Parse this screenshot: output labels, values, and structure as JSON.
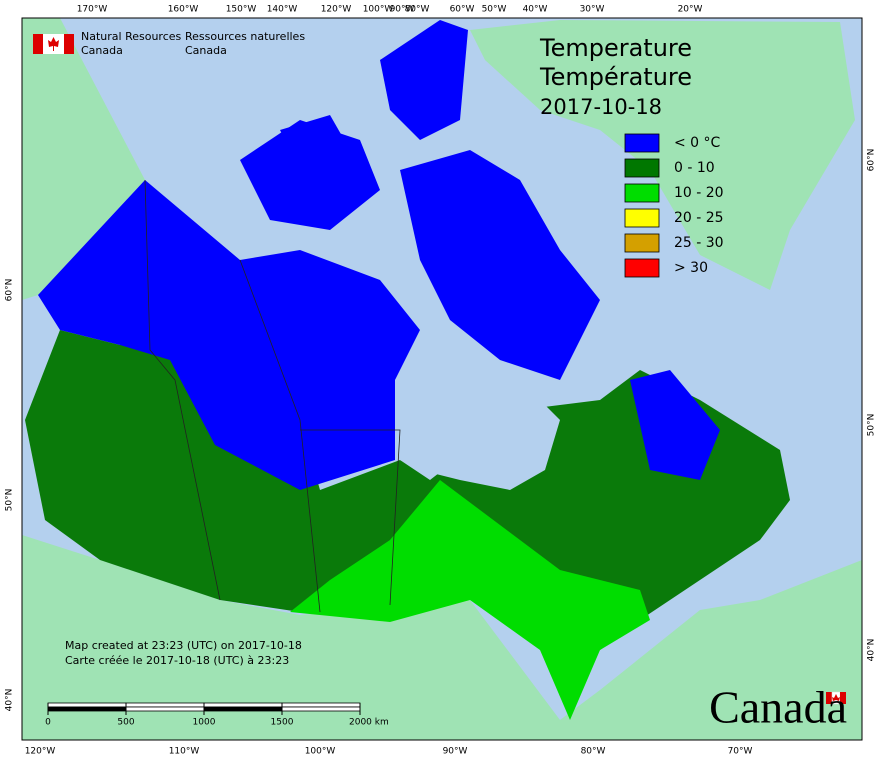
{
  "header": {
    "dept_en": [
      "Natural Resources",
      "Canada"
    ],
    "dept_fr": [
      "Ressources naturelles",
      "Canada"
    ]
  },
  "title": {
    "en": "Temperature",
    "fr": "Température",
    "date": "2017-10-18"
  },
  "legend": [
    {
      "label": "< 0 °C",
      "color": "#0000ff"
    },
    {
      "label": "0 - 10",
      "color": "#007700"
    },
    {
      "label": "10 - 20",
      "color": "#00dd00"
    },
    {
      "label": "20 - 25",
      "color": "#ffff00"
    },
    {
      "label": "25 - 30",
      "color": "#d4a000"
    },
    {
      "label": "> 30",
      "color": "#ff0000"
    }
  ],
  "graticule": {
    "top": [
      "170°W",
      "160°W",
      "150°W",
      "140°W",
      "120°W",
      "100°W",
      "90°W",
      "80°W",
      "60°W",
      "50°W",
      "40°W",
      "30°W",
      "20°W"
    ],
    "bottom": [
      "120°W",
      "110°W",
      "100°W",
      "90°W",
      "80°W",
      "70°W"
    ],
    "left": [
      "60°N",
      "50°N",
      "40°N"
    ],
    "right": [
      "60°N",
      "50°N",
      "40°N"
    ]
  },
  "credit": [
    "Map created at 23:23 (UTC) on 2017-10-18",
    "Carte créée le 2017-10-18 (UTC) à 23:23"
  ],
  "scale_bar": {
    "ticks": [
      0,
      500,
      1000,
      1500,
      {
        "value": 2000,
        "label": "2000 km"
      }
    ]
  },
  "wordmark": "Canada"
}
